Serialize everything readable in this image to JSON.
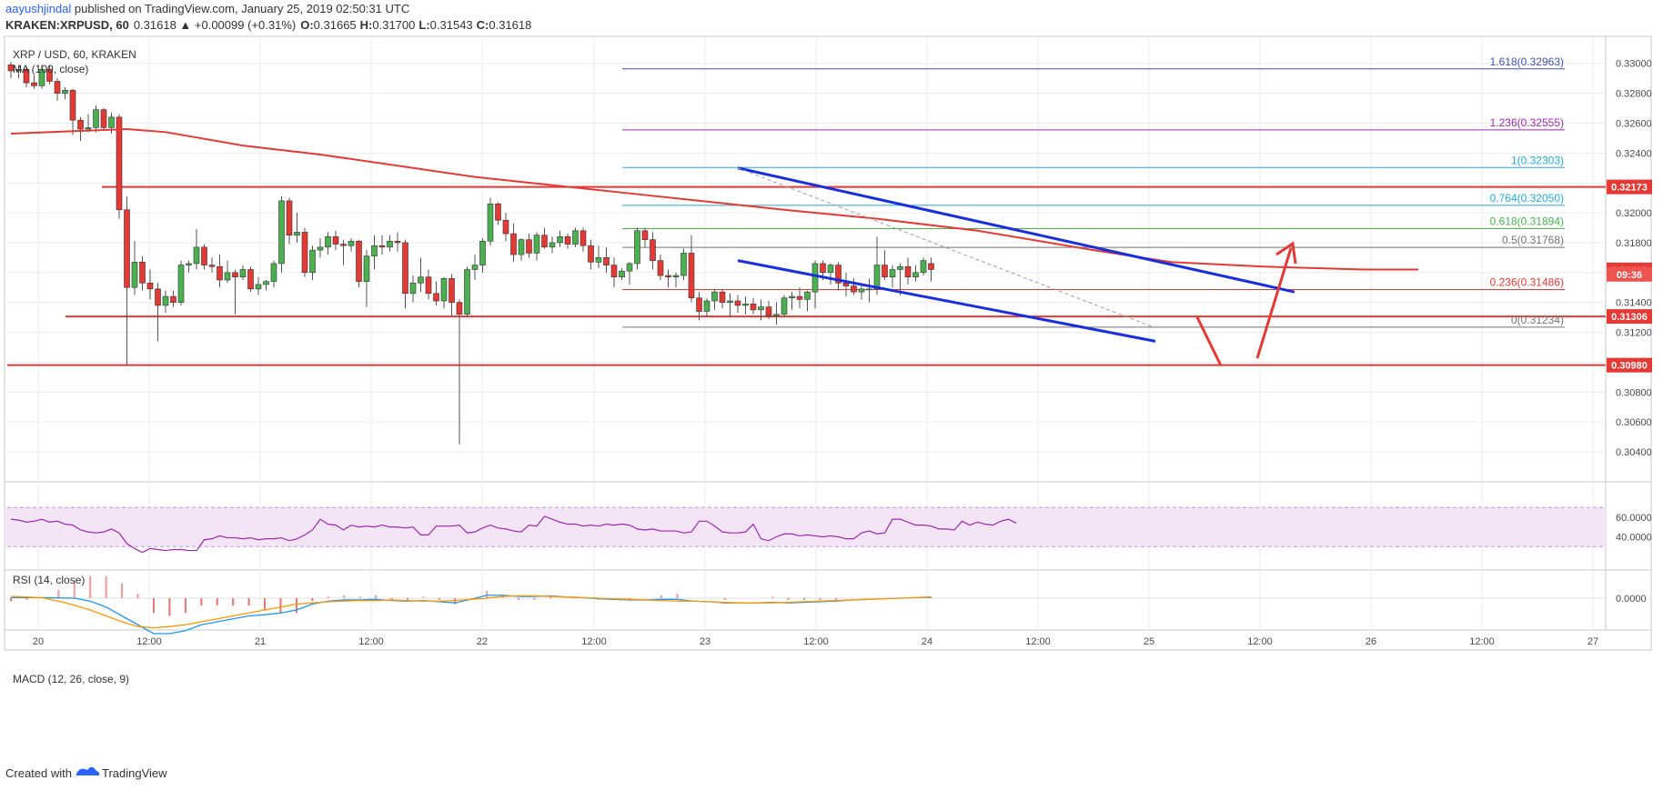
{
  "header": {
    "author": "aayushjindal",
    "published_text": " published on TradingView.com, January 25, 2019 02:50:31 UTC",
    "symbol_line": "KRAKEN:XRPUSD, 60",
    "change": "0.31618 ▲ +0.00099 (+0.31%)",
    "ohlc": {
      "o": "0.31665",
      "h": "0.31700",
      "l": "0.31543",
      "c": "0.31618"
    }
  },
  "legend": {
    "symbol": "XRP / USD, 60, KRAKEN",
    "ma": "MA (100, close)"
  },
  "rsi": {
    "title": "RSI (14, close)",
    "ticks": [
      "60.0000",
      "40.0000"
    ]
  },
  "macd": {
    "title": "MACD (12, 26, close, 9)",
    "ticks": [
      "0.0000"
    ]
  },
  "footer": {
    "created_with": "Created with",
    "brand": "TradingView"
  },
  "colors": {
    "up": "#4caf50",
    "down": "#e53935",
    "ma": "#e53935",
    "support": "#e53935",
    "channel": "#1a2fdc",
    "fib_blue": "#3f51b5",
    "fib_purple": "#9c27b0",
    "fib_cyan": "#26a8d8",
    "fib_green": "#4caf50",
    "rsi_line": "#9c27b0",
    "rsi_fill": "#f3e5f5",
    "macd_line": "#2196f3",
    "signal_line": "#ff9800"
  },
  "chart_data": {
    "type": "candlestick",
    "y_axis": {
      "range": [
        0.3026,
        0.3312
      ],
      "ticks": [
        "0.33000",
        "0.32800",
        "0.32600",
        "0.32400",
        "0.32200",
        "0.32000",
        "0.31800",
        "0.31600",
        "0.31400",
        "0.31200",
        "0.31000",
        "0.30800",
        "0.30600",
        "0.30400"
      ]
    },
    "x_axis": {
      "ticks": [
        "20",
        "12:00",
        "21",
        "12:00",
        "22",
        "12:00",
        "23",
        "12:00",
        "24",
        "12:00",
        "25",
        "12:00",
        "26",
        "12:00",
        "27"
      ]
    },
    "current_price": "0.31618",
    "countdown": "09:36",
    "horizontal_levels": [
      {
        "value": 0.32173,
        "label": "0.32173"
      },
      {
        "value": 0.31306,
        "label": "0.31306"
      },
      {
        "value": 0.3098,
        "label": "0.30980"
      }
    ],
    "fibonacci": [
      {
        "ratio": "1.618",
        "price": 0.32963,
        "label": "1.618(0.32963)",
        "color": "#3f51b5"
      },
      {
        "ratio": "1.236",
        "price": 0.32555,
        "label": "1.236(0.32555)",
        "color": "#9c27b0"
      },
      {
        "ratio": "1",
        "price": 0.32303,
        "label": "1(0.32303)",
        "color": "#26a8d8"
      },
      {
        "ratio": "0.764",
        "price": 0.3205,
        "label": "0.764(0.32050)",
        "color": "#26a8d8"
      },
      {
        "ratio": "0.618",
        "price": 0.31894,
        "label": "0.618(0.31894)",
        "color": "#4caf50"
      },
      {
        "ratio": "0.5",
        "price": 0.31768,
        "label": "0.5(0.31768)",
        "color": "#757575"
      },
      {
        "ratio": "0.236",
        "price": 0.31486,
        "label": "0.236(0.31486)",
        "color": "#e53935"
      },
      {
        "ratio": "0",
        "price": 0.31234,
        "label": "0(0.31234)",
        "color": "#757575"
      }
    ],
    "candles": [
      [
        0.3299,
        0.3301,
        0.329,
        0.3295
      ],
      [
        0.3295,
        0.3299,
        0.329,
        0.3296
      ],
      [
        0.3296,
        0.3298,
        0.3284,
        0.3287
      ],
      [
        0.3287,
        0.3292,
        0.3283,
        0.3285
      ],
      [
        0.3285,
        0.3299,
        0.3283,
        0.3296
      ],
      [
        0.3296,
        0.3299,
        0.3286,
        0.3288
      ],
      [
        0.3288,
        0.329,
        0.3275,
        0.328
      ],
      [
        0.328,
        0.3284,
        0.3276,
        0.3282
      ],
      [
        0.3282,
        0.3283,
        0.3252,
        0.3262
      ],
      [
        0.3262,
        0.3264,
        0.3248,
        0.3256
      ],
      [
        0.3256,
        0.3266,
        0.3254,
        0.3257
      ],
      [
        0.3257,
        0.3272,
        0.3254,
        0.3269
      ],
      [
        0.3269,
        0.327,
        0.3255,
        0.3257
      ],
      [
        0.3257,
        0.3267,
        0.3253,
        0.3264
      ],
      [
        0.3264,
        0.3266,
        0.3196,
        0.3202
      ],
      [
        0.3202,
        0.3211,
        0.3098,
        0.315
      ],
      [
        0.315,
        0.3181,
        0.3145,
        0.3167
      ],
      [
        0.3167,
        0.3171,
        0.3148,
        0.3153
      ],
      [
        0.3153,
        0.3162,
        0.3142,
        0.3149
      ],
      [
        0.3149,
        0.3153,
        0.3114,
        0.3138
      ],
      [
        0.3138,
        0.3148,
        0.3133,
        0.3144
      ],
      [
        0.3144,
        0.3148,
        0.3137,
        0.314
      ],
      [
        0.314,
        0.3168,
        0.3138,
        0.3165
      ],
      [
        0.3165,
        0.3168,
        0.316,
        0.3166
      ],
      [
        0.3166,
        0.3189,
        0.3162,
        0.3177
      ],
      [
        0.3177,
        0.3179,
        0.3162,
        0.3165
      ],
      [
        0.3165,
        0.317,
        0.316,
        0.3164
      ],
      [
        0.3164,
        0.3172,
        0.315,
        0.3155
      ],
      [
        0.3155,
        0.3168,
        0.3153,
        0.316
      ],
      [
        0.316,
        0.3162,
        0.3132,
        0.3157
      ],
      [
        0.3157,
        0.3165,
        0.3155,
        0.3162
      ],
      [
        0.3162,
        0.3164,
        0.3147,
        0.3149
      ],
      [
        0.3149,
        0.3157,
        0.3145,
        0.3152
      ],
      [
        0.3152,
        0.3155,
        0.3148,
        0.3154
      ],
      [
        0.3154,
        0.3168,
        0.315,
        0.3166
      ],
      [
        0.3166,
        0.3211,
        0.316,
        0.3208
      ],
      [
        0.3208,
        0.321,
        0.3179,
        0.3185
      ],
      [
        0.3185,
        0.32,
        0.318,
        0.3187
      ],
      [
        0.3187,
        0.319,
        0.3157,
        0.316
      ],
      [
        0.316,
        0.3178,
        0.3155,
        0.3175
      ],
      [
        0.3175,
        0.3183,
        0.317,
        0.3177
      ],
      [
        0.3177,
        0.3187,
        0.3172,
        0.3184
      ],
      [
        0.3184,
        0.3188,
        0.3175,
        0.3179
      ],
      [
        0.3179,
        0.3182,
        0.3165,
        0.3178
      ],
      [
        0.3178,
        0.3183,
        0.3174,
        0.3181
      ],
      [
        0.3181,
        0.3182,
        0.315,
        0.3154
      ],
      [
        0.3154,
        0.3175,
        0.3137,
        0.3171
      ],
      [
        0.3171,
        0.3185,
        0.3162,
        0.3178
      ],
      [
        0.3178,
        0.3185,
        0.3172,
        0.3177
      ],
      [
        0.3177,
        0.3185,
        0.3174,
        0.3181
      ],
      [
        0.3181,
        0.3187,
        0.3174,
        0.318
      ],
      [
        0.318,
        0.3182,
        0.3136,
        0.3146
      ],
      [
        0.3146,
        0.3158,
        0.314,
        0.3153
      ],
      [
        0.3153,
        0.317,
        0.3147,
        0.3157
      ],
      [
        0.3157,
        0.3162,
        0.3142,
        0.3146
      ],
      [
        0.3146,
        0.3154,
        0.3138,
        0.3141
      ],
      [
        0.3141,
        0.3157,
        0.3136,
        0.3156
      ],
      [
        0.3156,
        0.3159,
        0.3131,
        0.314
      ],
      [
        0.314,
        0.3142,
        0.3045,
        0.3132
      ],
      [
        0.3132,
        0.3164,
        0.313,
        0.3162
      ],
      [
        0.3162,
        0.3172,
        0.3155,
        0.3165
      ],
      [
        0.3165,
        0.3183,
        0.316,
        0.3181
      ],
      [
        0.3181,
        0.321,
        0.3178,
        0.3206
      ],
      [
        0.3206,
        0.3207,
        0.3192,
        0.3195
      ],
      [
        0.3195,
        0.32,
        0.3181,
        0.3186
      ],
      [
        0.3186,
        0.3193,
        0.3167,
        0.3172
      ],
      [
        0.3172,
        0.3183,
        0.3168,
        0.3182
      ],
      [
        0.3182,
        0.3186,
        0.317,
        0.3173
      ],
      [
        0.3173,
        0.3187,
        0.3168,
        0.3185
      ],
      [
        0.3185,
        0.319,
        0.3176,
        0.3177
      ],
      [
        0.3177,
        0.3184,
        0.3173,
        0.318
      ],
      [
        0.318,
        0.3188,
        0.3177,
        0.3184
      ],
      [
        0.3184,
        0.3186,
        0.3176,
        0.3179
      ],
      [
        0.3179,
        0.319,
        0.3177,
        0.3188
      ],
      [
        0.3188,
        0.319,
        0.3174,
        0.3178
      ],
      [
        0.3178,
        0.3182,
        0.3162,
        0.3167
      ],
      [
        0.3167,
        0.3178,
        0.3163,
        0.317
      ],
      [
        0.317,
        0.3177,
        0.316,
        0.3165
      ],
      [
        0.3165,
        0.317,
        0.315,
        0.3157
      ],
      [
        0.3157,
        0.3163,
        0.3155,
        0.3161
      ],
      [
        0.3161,
        0.3167,
        0.3152,
        0.3166
      ],
      [
        0.3166,
        0.319,
        0.3162,
        0.3188
      ],
      [
        0.3188,
        0.319,
        0.3177,
        0.3182
      ],
      [
        0.3182,
        0.3187,
        0.3162,
        0.3168
      ],
      [
        0.3168,
        0.3172,
        0.3155,
        0.3158
      ],
      [
        0.3158,
        0.3162,
        0.315,
        0.3157
      ],
      [
        0.3157,
        0.316,
        0.315,
        0.3158
      ],
      [
        0.3158,
        0.3176,
        0.3155,
        0.3173
      ],
      [
        0.3173,
        0.3185,
        0.314,
        0.3143
      ],
      [
        0.3143,
        0.3147,
        0.3128,
        0.3134
      ],
      [
        0.3134,
        0.3143,
        0.313,
        0.3141
      ],
      [
        0.3141,
        0.3149,
        0.3135,
        0.3147
      ],
      [
        0.3147,
        0.3149,
        0.3136,
        0.314
      ],
      [
        0.314,
        0.3146,
        0.313,
        0.3141
      ],
      [
        0.3141,
        0.3145,
        0.3133,
        0.3138
      ],
      [
        0.3138,
        0.3144,
        0.3132,
        0.3139
      ],
      [
        0.3139,
        0.3143,
        0.3132,
        0.3135
      ],
      [
        0.3135,
        0.3142,
        0.3128,
        0.3137
      ],
      [
        0.3137,
        0.3141,
        0.3129,
        0.3131
      ],
      [
        0.3131,
        0.314,
        0.3125,
        0.3132
      ],
      [
        0.3132,
        0.3145,
        0.313,
        0.3143
      ],
      [
        0.3143,
        0.3147,
        0.3135,
        0.3144
      ],
      [
        0.3144,
        0.315,
        0.3136,
        0.3142
      ],
      [
        0.3142,
        0.3148,
        0.3134,
        0.3147
      ],
      [
        0.3147,
        0.3168,
        0.3136,
        0.3166
      ],
      [
        0.3166,
        0.3168,
        0.3155,
        0.316
      ],
      [
        0.316,
        0.3166,
        0.3152,
        0.3165
      ],
      [
        0.3165,
        0.3167,
        0.3148,
        0.3153
      ],
      [
        0.3153,
        0.316,
        0.3144,
        0.3151
      ],
      [
        0.3151,
        0.3156,
        0.3145,
        0.3147
      ],
      [
        0.3147,
        0.3152,
        0.3142,
        0.3149
      ],
      [
        0.3149,
        0.3156,
        0.314,
        0.3149
      ],
      [
        0.3149,
        0.3184,
        0.3145,
        0.3165
      ],
      [
        0.3165,
        0.3175,
        0.3155,
        0.3157
      ],
      [
        0.3157,
        0.3165,
        0.315,
        0.3162
      ],
      [
        0.3162,
        0.3166,
        0.3145,
        0.3164
      ],
      [
        0.3164,
        0.317,
        0.3152,
        0.3157
      ],
      [
        0.3157,
        0.3165,
        0.3154,
        0.316
      ],
      [
        0.316,
        0.317,
        0.3158,
        0.3168
      ],
      [
        0.3166,
        0.317,
        0.3154,
        0.3162
      ]
    ],
    "ma_100": [
      [
        0,
        0.3253
      ],
      [
        10,
        0.3255
      ],
      [
        15,
        0.3256
      ],
      [
        20,
        0.3254
      ],
      [
        30,
        0.3245
      ],
      [
        40,
        0.3239
      ],
      [
        60,
        0.3224
      ],
      [
        80,
        0.3213
      ],
      [
        100,
        0.3202
      ],
      [
        112,
        0.3196
      ],
      [
        125,
        0.3188
      ],
      [
        140,
        0.3175
      ],
      [
        150,
        0.3167
      ],
      [
        162,
        0.3164
      ],
      [
        175,
        0.3162
      ],
      [
        182,
        0.3162
      ]
    ],
    "channel_lines": [
      {
        "from": [
          94,
          0.323
        ],
        "to": [
          166,
          0.3147
        ]
      },
      {
        "from": [
          94,
          0.3168
        ],
        "to": [
          148,
          0.3114
        ]
      }
    ],
    "dashed_trend": {
      "from": [
        94,
        0.323
      ],
      "to": [
        148,
        0.3123
      ]
    },
    "rsi_values": [
      58,
      57,
      55,
      56,
      58,
      55,
      56,
      53,
      52,
      47,
      45,
      44,
      45,
      48,
      44,
      33,
      28,
      24,
      28,
      27,
      26,
      27,
      27,
      26,
      26,
      37,
      38,
      41,
      39,
      39,
      38,
      39,
      37,
      38,
      38,
      39,
      36,
      38,
      42,
      47,
      58,
      53,
      52,
      47,
      52,
      50,
      51,
      50,
      52,
      50,
      50,
      49,
      50,
      42,
      42,
      51,
      51,
      51,
      52,
      44,
      45,
      49,
      52,
      49,
      48,
      46,
      45,
      52,
      51,
      61,
      58,
      55,
      53,
      53,
      51,
      52,
      51,
      53,
      52,
      53,
      52,
      48,
      47,
      48,
      46,
      46,
      46,
      44,
      45,
      56,
      56,
      51,
      45,
      44,
      44,
      45,
      53,
      38,
      36,
      40,
      43,
      43,
      41,
      42,
      41,
      40,
      41,
      40,
      38,
      38,
      44,
      46,
      43,
      44,
      58,
      58,
      55,
      52,
      52,
      51,
      48,
      48,
      47,
      56,
      52,
      55,
      53,
      52,
      56,
      58,
      54
    ],
    "macd_line": [
      1e-05,
      1e-05,
      1e-05,
      5e-06,
      0,
      -5e-05,
      -0.00015,
      -0.0003,
      -0.00045,
      -0.0006,
      -0.0006,
      -0.00055,
      -0.00045,
      -0.0004,
      -0.00035,
      -0.0003,
      -0.00028,
      -0.00025,
      -0.0002,
      -0.0001,
      -5e-05,
      -3e-05,
      -3e-05,
      -2e-05,
      -4e-05,
      -5e-05,
      -4e-05,
      -6e-05,
      -8e-05,
      -2e-05,
      5e-05,
      5e-05,
      3e-05,
      3e-05,
      4e-05,
      2e-05,
      1e-05,
      -1e-05,
      -2e-05,
      -3e-05,
      -3e-05,
      -2e-05,
      -2e-05,
      -5e-05,
      -6e-05,
      -8e-05,
      -8e-05,
      -8e-05,
      -7e-05,
      -8e-05,
      -7e-05,
      -6e-05,
      -5e-05,
      -3e-05,
      -2e-05,
      -1e-05,
      0,
      1e-05,
      2e-05
    ],
    "signal_line": [
      3e-05,
      2e-05,
      5e-06,
      -5e-05,
      -0.00012,
      -0.0002,
      -0.0003,
      -0.0004,
      -0.00048,
      -0.0005,
      -0.00048,
      -0.00045,
      -0.0004,
      -0.00035,
      -0.0003,
      -0.00025,
      -0.0002,
      -0.00015,
      -0.0001,
      -8e-05,
      -6e-05,
      -5e-05,
      -4e-05,
      -4e-05,
      -3e-05,
      -4e-05,
      -5e-05,
      -5e-05,
      -4e-05,
      -2e-05,
      0,
      3e-05,
      4e-05,
      4e-05,
      3e-05,
      2e-05,
      1e-05,
      0,
      -1e-05,
      -2e-05,
      -3e-05,
      -4e-05,
      -5e-05,
      -5e-05,
      -6e-05,
      -7e-05,
      -8e-05,
      -8e-05,
      -8e-05,
      -7e-05,
      -6e-05,
      -5e-05,
      -4e-05,
      -3e-05,
      -2e-05,
      -1e-05,
      0,
      1e-05,
      1e-05
    ]
  }
}
